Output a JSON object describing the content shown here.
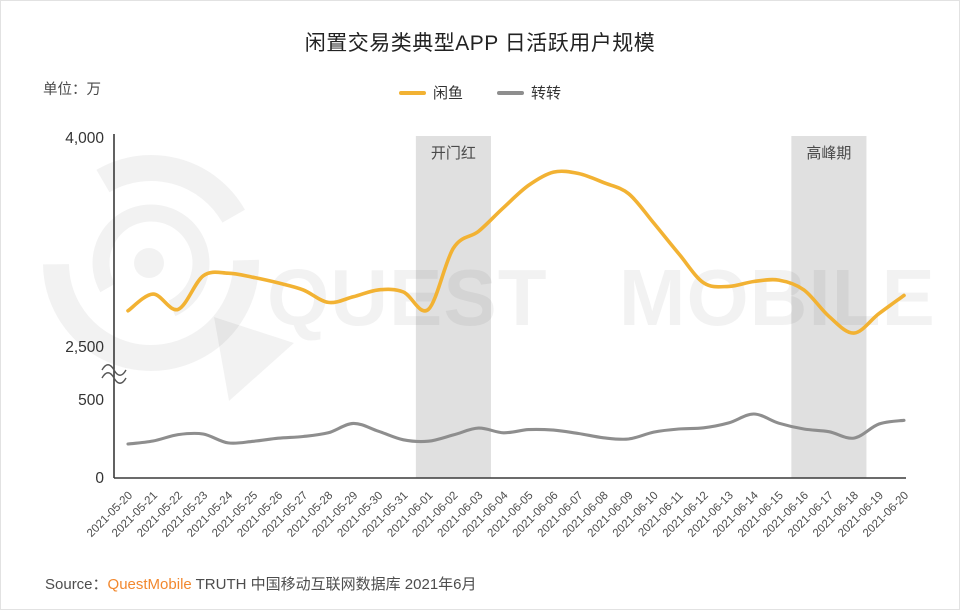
{
  "title": "闲置交易类典型APP 日活跃用户规模",
  "unit_label": "单位：万",
  "source": {
    "prefix": "Source：",
    "brand": "QuestMobile",
    "suffix": " TRUTH 中国移动互联网数据库 2021年6月",
    "brand_color": "#F2882E"
  },
  "watermark": {
    "text": "QUEST MOBILE",
    "logo": "questmobile-bubble-logo"
  },
  "chart_data": {
    "type": "line",
    "title": "闲置交易类典型APP 日活跃用户规模",
    "unit": "万",
    "grid": false,
    "legend_position": "top-center",
    "x": [
      "2021-05-20",
      "2021-05-21",
      "2021-05-22",
      "2021-05-23",
      "2021-05-24",
      "2021-05-25",
      "2021-05-26",
      "2021-05-27",
      "2021-05-28",
      "2021-05-29",
      "2021-05-30",
      "2021-05-31",
      "2021-06-01",
      "2021-06-02",
      "2021-06-03",
      "2021-06-04",
      "2021-06-05",
      "2021-06-06",
      "2021-06-07",
      "2021-06-08",
      "2021-06-09",
      "2021-06-10",
      "2021-06-11",
      "2021-06-12",
      "2021-06-13",
      "2021-06-14",
      "2021-06-15",
      "2021-06-16",
      "2021-06-17",
      "2021-06-18",
      "2021-06-19",
      "2021-06-20"
    ],
    "series": [
      {
        "name": "闲鱼",
        "color": "#F2B233",
        "values": [
          2760,
          2880,
          2770,
          3010,
          3030,
          3000,
          2960,
          2910,
          2820,
          2860,
          2910,
          2895,
          2770,
          3210,
          3330,
          3500,
          3660,
          3755,
          3745,
          3680,
          3600,
          3390,
          3170,
          2960,
          2935,
          2970,
          2980,
          2910,
          2720,
          2600,
          2740,
          2870
        ]
      },
      {
        "name": "转转",
        "color": "#8E8E8E",
        "values": [
          218,
          237,
          278,
          282,
          225,
          235,
          255,
          266,
          290,
          350,
          300,
          245,
          236,
          276,
          320,
          290,
          310,
          307,
          285,
          258,
          250,
          294,
          314,
          322,
          353,
          410,
          351,
          314,
          297,
          256,
          346,
          370
        ]
      }
    ],
    "y_ticks": [
      {
        "value": 0,
        "label": "0"
      },
      {
        "value": 500,
        "label": "500"
      },
      {
        "value": 2500,
        "label": "2,500"
      },
      {
        "value": 4000,
        "label": "4,000"
      }
    ],
    "axis_break": {
      "between": [
        500,
        2500
      ]
    },
    "bands": [
      {
        "from": "2021-06-01",
        "to": "2021-06-03",
        "label": "开门红",
        "color": "#E0E0E0"
      },
      {
        "from": "2021-06-16",
        "to": "2021-06-18",
        "label": "高峰期",
        "color": "#E0E0E0"
      }
    ]
  }
}
